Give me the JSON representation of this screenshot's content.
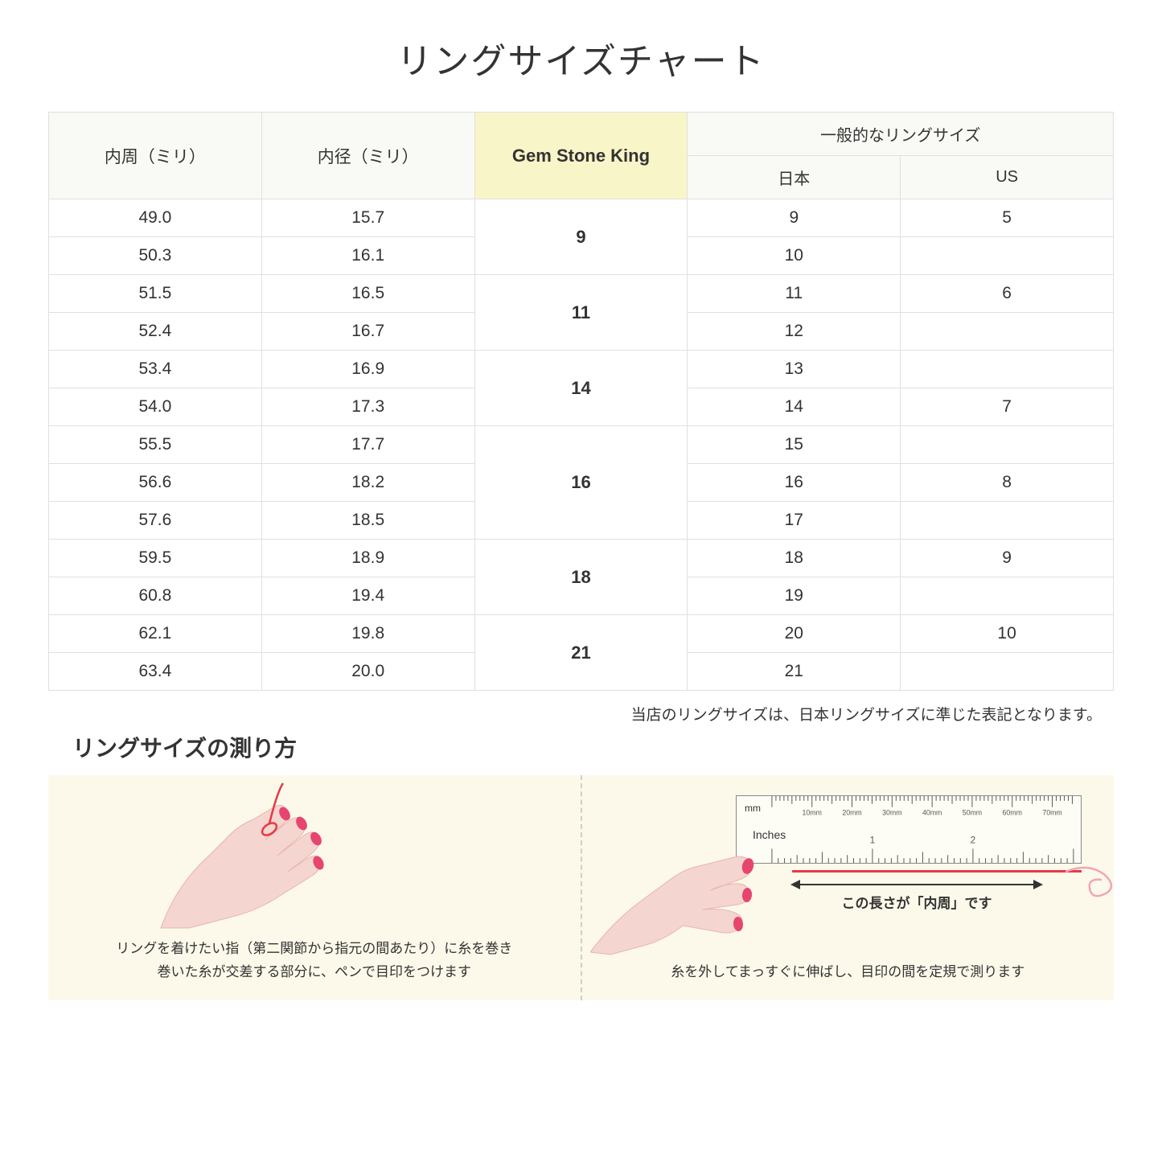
{
  "title": "リングサイズチャート",
  "headers": {
    "circumference": "内周（ミリ）",
    "diameter": "内径（ミリ）",
    "gsk": "Gem Stone King",
    "general": "一般的なリングサイズ",
    "japan": "日本",
    "us": "US"
  },
  "rows": [
    {
      "c": "49.0",
      "d": "15.7",
      "jp": "9",
      "us": "5",
      "gsk": "9",
      "gspan": 2
    },
    {
      "c": "50.3",
      "d": "16.1",
      "jp": "10",
      "us": ""
    },
    {
      "c": "51.5",
      "d": "16.5",
      "jp": "11",
      "us": "6",
      "gsk": "11",
      "gspan": 2
    },
    {
      "c": "52.4",
      "d": "16.7",
      "jp": "12",
      "us": ""
    },
    {
      "c": "53.4",
      "d": "16.9",
      "jp": "13",
      "us": "",
      "gsk": "14",
      "gspan": 2
    },
    {
      "c": "54.0",
      "d": "17.3",
      "jp": "14",
      "us": "7"
    },
    {
      "c": "55.5",
      "d": "17.7",
      "jp": "15",
      "us": "",
      "gsk": "16",
      "gspan": 3
    },
    {
      "c": "56.6",
      "d": "18.2",
      "jp": "16",
      "us": "8"
    },
    {
      "c": "57.6",
      "d": "18.5",
      "jp": "17",
      "us": ""
    },
    {
      "c": "59.5",
      "d": "18.9",
      "jp": "18",
      "us": "9",
      "gsk": "18",
      "gspan": 2
    },
    {
      "c": "60.8",
      "d": "19.4",
      "jp": "19",
      "us": ""
    },
    {
      "c": "62.1",
      "d": "19.8",
      "jp": "20",
      "us": "10",
      "gsk": "21",
      "gspan": 2
    },
    {
      "c": "63.4",
      "d": "20.0",
      "jp": "21",
      "us": ""
    }
  ],
  "note": "当店のリングサイズは、日本リングサイズに準じた表記となります。",
  "howto_title": "リングサイズの測り方",
  "left_instruction": "リングを着けたい指（第二関節から指元の間あたり）に糸を巻き\n巻いた糸が交差する部分に、ペンで目印をつけます",
  "right_instruction": "糸を外してまっすぐに伸ばし、目印の間を定規で測ります",
  "arrow_label": "この長さが「内周」です",
  "ruler": {
    "mm_label": "mm",
    "in_label": "Inches",
    "mm_marks": [
      "10mm",
      "20mm",
      "30mm",
      "40mm",
      "50mm",
      "60mm",
      "70mm"
    ],
    "in_marks": [
      "1",
      "2"
    ]
  },
  "colors": {
    "skin": "#f5d5cf",
    "skin_dark": "#e8b5ae",
    "nail": "#e6456f",
    "thread": "#e63946",
    "highlight": "#f8f5c8"
  }
}
